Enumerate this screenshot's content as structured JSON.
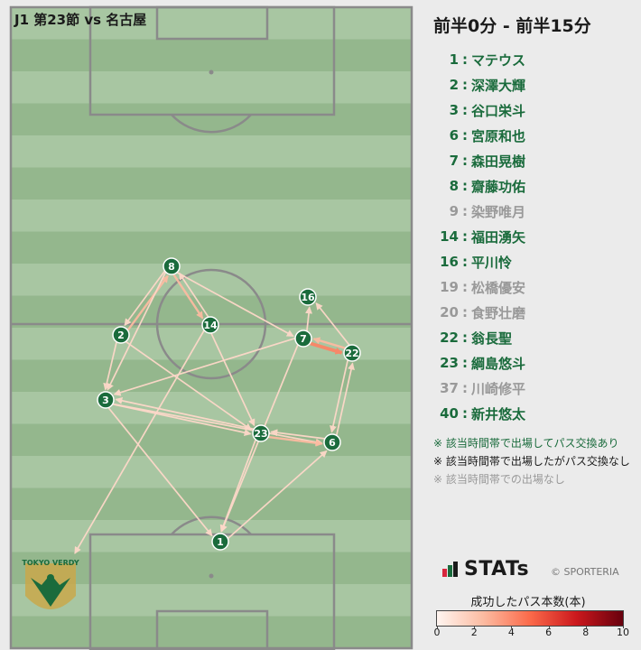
{
  "match_title": "J1 第23節 vs 名古屋",
  "time_range": "前半0分 - 前半15分",
  "team_logo_text": "TOKYO VERDY",
  "roster": [
    {
      "num": "1",
      "name": "マテウス",
      "status": "passed"
    },
    {
      "num": "2",
      "name": "深澤大輝",
      "status": "passed"
    },
    {
      "num": "3",
      "name": "谷口栄斗",
      "status": "passed"
    },
    {
      "num": "6",
      "name": "宮原和也",
      "status": "passed"
    },
    {
      "num": "7",
      "name": "森田晃樹",
      "status": "passed"
    },
    {
      "num": "8",
      "name": "齋藤功佑",
      "status": "passed"
    },
    {
      "num": "9",
      "name": "染野唯月",
      "status": "inactive"
    },
    {
      "num": "14",
      "name": "福田湧矢",
      "status": "passed"
    },
    {
      "num": "16",
      "name": "平川怜",
      "status": "passed"
    },
    {
      "num": "19",
      "name": "松橋優安",
      "status": "inactive"
    },
    {
      "num": "20",
      "name": "食野壮磨",
      "status": "inactive"
    },
    {
      "num": "22",
      "name": "翁長聖",
      "status": "passed"
    },
    {
      "num": "23",
      "name": "綱島悠斗",
      "status": "passed"
    },
    {
      "num": "37",
      "name": "川崎修平",
      "status": "inactive"
    },
    {
      "num": "40",
      "name": "新井悠太",
      "status": "passed"
    }
  ],
  "notes": [
    "※ 該当時間帯で出場してパス交換あり",
    "※ 該当時間帯で出場したがパス交換なし",
    "※ 該当時間帯での出場なし"
  ],
  "brand": {
    "stats": "STATs",
    "copyright": "© SPORTERIA"
  },
  "legend": {
    "title": "成功したパス本数(本)",
    "ticks": [
      "0",
      "2",
      "4",
      "6",
      "8",
      "10"
    ],
    "min": 0,
    "max": 10
  },
  "colors": {
    "node": "#1a6b3c",
    "passed_text": "#1a6b3c",
    "inactive_text": "#999999",
    "pitch_light": "#a8c6a2",
    "pitch_dark": "#94b78d"
  },
  "players_on_pitch": [
    "8",
    "16",
    "2",
    "14",
    "7",
    "22",
    "3",
    "23",
    "6",
    "1"
  ],
  "passes": [
    {
      "from": "2",
      "to": "8",
      "count": 2
    },
    {
      "from": "8",
      "to": "2",
      "count": 1
    },
    {
      "from": "8",
      "to": "14",
      "count": 2
    },
    {
      "from": "14",
      "to": "8",
      "count": 1
    },
    {
      "from": "8",
      "to": "7",
      "count": 1
    },
    {
      "from": "8",
      "to": "3",
      "count": 1
    },
    {
      "from": "2",
      "to": "3",
      "count": 1
    },
    {
      "from": "3",
      "to": "23",
      "count": 1
    },
    {
      "from": "23",
      "to": "3",
      "count": 1
    },
    {
      "from": "3",
      "to": "6",
      "count": 1
    },
    {
      "from": "3",
      "to": "1",
      "count": 1
    },
    {
      "from": "2",
      "to": "23",
      "count": 1
    },
    {
      "from": "14",
      "to": "23",
      "count": 1
    },
    {
      "from": "7",
      "to": "22",
      "count": 4
    },
    {
      "from": "22",
      "to": "7",
      "count": 2
    },
    {
      "from": "7",
      "to": "16",
      "count": 1
    },
    {
      "from": "22",
      "to": "16",
      "count": 1
    },
    {
      "from": "7",
      "to": "3",
      "count": 1
    },
    {
      "from": "22",
      "to": "6",
      "count": 1
    },
    {
      "from": "6",
      "to": "22",
      "count": 1
    },
    {
      "from": "23",
      "to": "6",
      "count": 2
    },
    {
      "from": "6",
      "to": "23",
      "count": 1
    },
    {
      "from": "23",
      "to": "1",
      "count": 1
    },
    {
      "from": "1",
      "to": "6",
      "count": 1
    },
    {
      "from": "7",
      "to": "1",
      "count": 1
    },
    {
      "from": "14",
      "to": "team-logo",
      "count": 1
    }
  ]
}
